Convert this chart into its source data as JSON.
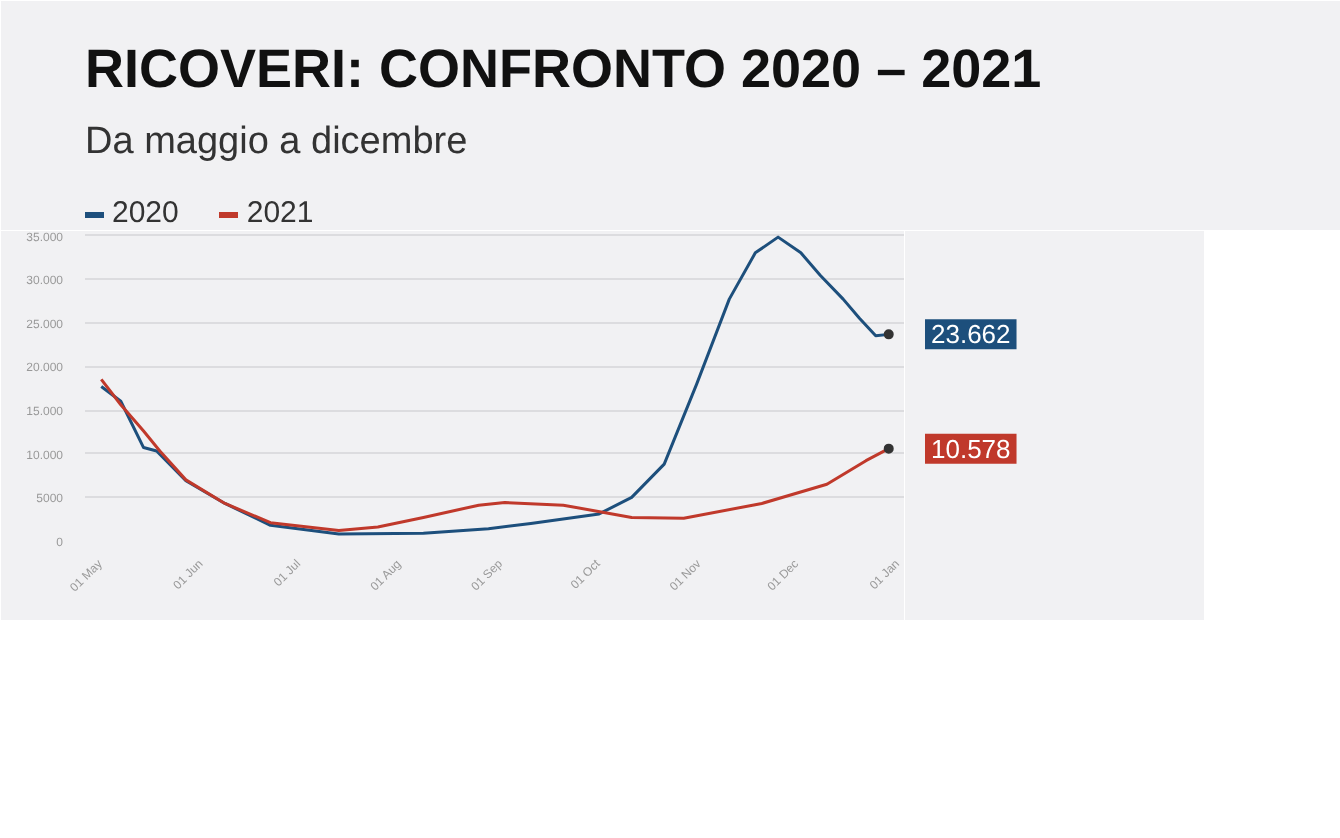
{
  "chart_data": {
    "type": "line",
    "title": "RICOVERI: CONFRONTO 2020 – 2021",
    "subtitle": "Da maggio a dicembre",
    "legend": "top left",
    "grid": "y",
    "marker": "none",
    "line_style": "solid",
    "xlim": [
      "2020-04-26",
      "2021-01-03"
    ],
    "xticks": [
      {
        "value": "2020-05-01",
        "label": "01 May"
      },
      {
        "value": "2020-06-01",
        "label": "01 Jun"
      },
      {
        "value": "2020-07-01",
        "label": "01 Jul"
      },
      {
        "value": "2020-08-01",
        "label": "01 Aug"
      },
      {
        "value": "2020-09-01",
        "label": "01 Sep"
      },
      {
        "value": "2020-10-01",
        "label": "01 Oct"
      },
      {
        "value": "2020-11-01",
        "label": "01 Nov"
      },
      {
        "value": "2020-12-01",
        "label": "01 Dec"
      },
      {
        "value": "2021-01-01",
        "label": "01 Jan"
      }
    ],
    "ylim": [
      0,
      35500
    ],
    "yticks": [
      0,
      5000,
      {
        "value": 10000,
        "label": "10.000"
      },
      {
        "value": 15000,
        "label": "15.000"
      },
      {
        "value": 20000,
        "label": "20.000"
      },
      {
        "value": 25000,
        "label": "25.000"
      },
      {
        "value": 30000,
        "label": "30.000"
      },
      {
        "value": 35000,
        "label": "35.000"
      }
    ],
    "series": [
      {
        "name": "2020",
        "color": "#1d4f7c",
        "x": [
          "2020-05-01",
          "2020-05-07",
          "2020-05-14",
          "2020-05-18",
          "2020-05-27",
          "2020-06-08",
          "2020-06-22",
          "2020-07-13",
          "2020-08-08",
          "2020-08-28",
          "2020-09-10",
          "2020-10-01",
          "2020-10-11",
          "2020-10-21",
          "2020-10-31",
          "2020-11-10",
          "2020-11-18",
          "2020-11-25",
          "2020-12-02",
          "2020-12-08",
          "2020-12-15",
          "2020-12-20",
          "2020-12-25",
          "2020-12-29"
        ],
        "values": [
          17700,
          16000,
          10700,
          10300,
          6900,
          4300,
          1800,
          800,
          900,
          1400,
          2000,
          3100,
          5000,
          8800,
          18000,
          27700,
          33000,
          34800,
          33000,
          30400,
          27700,
          25500,
          23500,
          23662
        ],
        "value_labels": [
          null,
          null,
          null,
          null,
          null,
          null,
          null,
          null,
          null,
          null,
          null,
          null,
          null,
          null,
          null,
          null,
          null,
          null,
          null,
          null,
          null,
          null,
          null,
          "23.662"
        ]
      },
      {
        "name": "2021",
        "color": "#c0392b",
        "x": [
          "2020-05-01",
          "2020-05-07",
          "2020-05-14",
          "2020-05-19",
          "2020-05-27",
          "2020-06-08",
          "2020-06-22",
          "2020-07-13",
          "2020-07-25",
          "2020-08-08",
          "2020-08-25",
          "2020-09-02",
          "2020-09-20",
          "2020-10-11",
          "2020-10-27",
          "2020-11-20",
          "2020-12-10",
          "2020-12-22",
          "2020-12-29"
        ],
        "values": [
          18500,
          15600,
          12600,
          10300,
          7000,
          4300,
          2100,
          1200,
          1600,
          2700,
          4100,
          4400,
          4100,
          2700,
          2600,
          4300,
          6500,
          9200,
          10578
        ],
        "value_labels": [
          null,
          null,
          null,
          null,
          null,
          null,
          null,
          null,
          null,
          null,
          null,
          null,
          null,
          null,
          null,
          null,
          null,
          null,
          "10.578"
        ]
      }
    ]
  }
}
